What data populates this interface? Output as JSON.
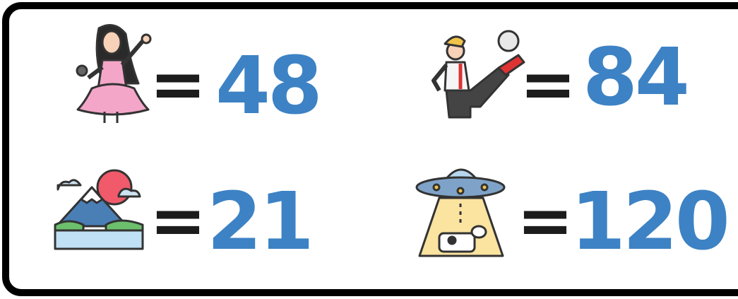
{
  "items": [
    {
      "operator": "=",
      "value": "48"
    },
    {
      "operator": "=",
      "value": "84"
    },
    {
      "operator": "=",
      "value": "21"
    },
    {
      "operator": "=",
      "value": "120"
    }
  ]
}
